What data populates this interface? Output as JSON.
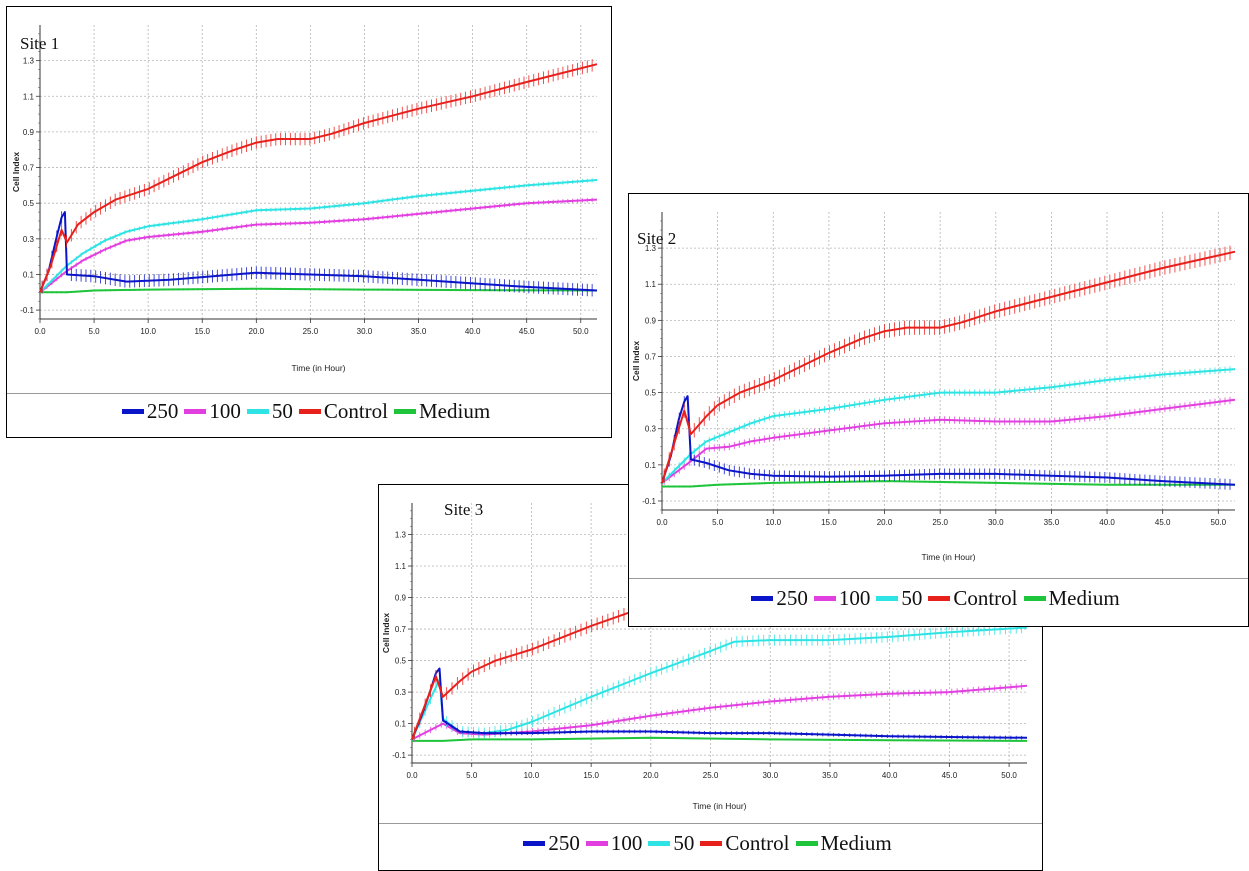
{
  "chart_data": [
    {
      "type": "line",
      "title": "Site 1",
      "xlabel": "Time (in Hour)",
      "ylabel": "Cell Index",
      "xlim": [
        0,
        51.5
      ],
      "ylim": [
        -0.15,
        1.5
      ],
      "xticks": [
        "0.0",
        "5.0",
        "10.0",
        "15.0",
        "20.0",
        "25.0",
        "30.0",
        "35.0",
        "40.0",
        "45.0",
        "50.0"
      ],
      "yticks": [
        "-0.1",
        "0.1",
        "0.3",
        "0.5",
        "0.7",
        "0.9",
        "1.1",
        "1.3"
      ],
      "grid": true,
      "legend": "bottom",
      "series": [
        {
          "name": "250",
          "color": "#0a14c8",
          "error": 0.035,
          "x": [
            0,
            0.8,
            1.5,
            2.0,
            2.3,
            2.5,
            5,
            8,
            12,
            16,
            20,
            25,
            30,
            35,
            40,
            45,
            51.5
          ],
          "y": [
            0,
            0.12,
            0.3,
            0.42,
            0.45,
            0.1,
            0.09,
            0.06,
            0.07,
            0.09,
            0.11,
            0.1,
            0.09,
            0.07,
            0.05,
            0.03,
            0.01
          ]
        },
        {
          "name": "100",
          "color": "#e23fe0",
          "error": 0.012,
          "x": [
            0,
            2.5,
            4,
            6,
            8,
            10,
            15,
            20,
            25,
            30,
            35,
            40,
            45,
            51.5
          ],
          "y": [
            0,
            0.12,
            0.18,
            0.24,
            0.29,
            0.31,
            0.34,
            0.38,
            0.39,
            0.41,
            0.44,
            0.47,
            0.5,
            0.52
          ]
        },
        {
          "name": "50",
          "color": "#2ee3e3",
          "error": 0.012,
          "x": [
            0,
            2.5,
            4,
            6,
            8,
            10,
            15,
            20,
            25,
            30,
            35,
            40,
            45,
            51.5
          ],
          "y": [
            0,
            0.15,
            0.22,
            0.29,
            0.34,
            0.37,
            0.41,
            0.46,
            0.47,
            0.5,
            0.54,
            0.57,
            0.6,
            0.63
          ]
        },
        {
          "name": "Control",
          "color": "#e8201c",
          "error": 0.035,
          "x": [
            0,
            1.0,
            2.0,
            2.5,
            3.5,
            5,
            7,
            10,
            12,
            15,
            18,
            20,
            22,
            25,
            27,
            30,
            35,
            40,
            45,
            51.5
          ],
          "y": [
            0,
            0.15,
            0.35,
            0.28,
            0.38,
            0.45,
            0.52,
            0.58,
            0.64,
            0.73,
            0.8,
            0.84,
            0.86,
            0.86,
            0.89,
            0.95,
            1.03,
            1.1,
            1.18,
            1.28
          ]
        },
        {
          "name": "Medium",
          "color": "#1ec43a",
          "error": 0.006,
          "x": [
            0,
            2.5,
            5,
            10,
            20,
            30,
            40,
            51.5
          ],
          "y": [
            0,
            0.0,
            0.01,
            0.015,
            0.02,
            0.015,
            0.012,
            0.01
          ]
        }
      ]
    },
    {
      "type": "line",
      "title": "Site 2",
      "xlabel": "Time (in Hour)",
      "ylabel": "Cell Index",
      "xlim": [
        0,
        51.5
      ],
      "ylim": [
        -0.15,
        1.5
      ],
      "xticks": [
        "0.0",
        "5.0",
        "10.0",
        "15.0",
        "20.0",
        "25.0",
        "30.0",
        "35.0",
        "40.0",
        "45.0",
        "50.0"
      ],
      "yticks": [
        "-0.1",
        "0.1",
        "0.3",
        "0.5",
        "0.7",
        "0.9",
        "1.1",
        "1.3"
      ],
      "grid": true,
      "legend": "bottom",
      "series": [
        {
          "name": "250",
          "color": "#0a14c8",
          "error": 0.03,
          "x": [
            0,
            0.8,
            1.5,
            2.0,
            2.3,
            2.6,
            4,
            6,
            8,
            10,
            15,
            20,
            25,
            30,
            35,
            40,
            45,
            51.5
          ],
          "y": [
            0,
            0.15,
            0.35,
            0.45,
            0.48,
            0.13,
            0.11,
            0.07,
            0.05,
            0.04,
            0.035,
            0.04,
            0.05,
            0.05,
            0.04,
            0.03,
            0.01,
            -0.01
          ]
        },
        {
          "name": "100",
          "color": "#e23fe0",
          "error": 0.02,
          "x": [
            0,
            2.6,
            4,
            6,
            8,
            10,
            15,
            20,
            25,
            30,
            35,
            40,
            45,
            51.5
          ],
          "y": [
            0,
            0.12,
            0.19,
            0.2,
            0.23,
            0.25,
            0.29,
            0.33,
            0.35,
            0.34,
            0.34,
            0.37,
            0.41,
            0.46
          ]
        },
        {
          "name": "50",
          "color": "#2ee3e3",
          "error": 0.018,
          "x": [
            0,
            2.6,
            4,
            6,
            8,
            10,
            15,
            20,
            25,
            30,
            35,
            40,
            45,
            51.5
          ],
          "y": [
            0,
            0.16,
            0.23,
            0.28,
            0.33,
            0.37,
            0.41,
            0.46,
            0.5,
            0.5,
            0.53,
            0.57,
            0.6,
            0.63
          ]
        },
        {
          "name": "Control",
          "color": "#e8201c",
          "error": 0.04,
          "x": [
            0,
            1.0,
            2.0,
            2.6,
            4,
            5,
            7,
            10,
            12,
            15,
            18,
            20,
            22,
            25,
            27,
            30,
            35,
            40,
            45,
            51.5
          ],
          "y": [
            0,
            0.2,
            0.4,
            0.27,
            0.37,
            0.43,
            0.5,
            0.57,
            0.63,
            0.72,
            0.8,
            0.84,
            0.86,
            0.86,
            0.89,
            0.95,
            1.03,
            1.11,
            1.19,
            1.28
          ]
        },
        {
          "name": "Medium",
          "color": "#1ec43a",
          "error": 0.006,
          "x": [
            0,
            2.6,
            5,
            10,
            20,
            30,
            40,
            51.5
          ],
          "y": [
            -0.02,
            -0.02,
            -0.01,
            0.0,
            0.01,
            0.0,
            -0.01,
            -0.01
          ]
        }
      ]
    },
    {
      "type": "line",
      "title": "Site 3",
      "xlabel": "Time (in Hour)",
      "ylabel": "Cell Index",
      "xlim": [
        0,
        51.5
      ],
      "ylim": [
        -0.15,
        1.5
      ],
      "xticks": [
        "0.0",
        "5.0",
        "10.0",
        "15.0",
        "20.0",
        "25.0",
        "30.0",
        "35.0",
        "40.0",
        "45.0",
        "50.0"
      ],
      "yticks": [
        "-0.1",
        "0.1",
        "0.3",
        "0.5",
        "0.7",
        "0.9",
        "1.1",
        "1.3"
      ],
      "grid": true,
      "legend": "bottom",
      "series": [
        {
          "name": "250",
          "color": "#0a14c8",
          "error": 0.012,
          "x": [
            0,
            0.8,
            1.5,
            2.0,
            2.3,
            2.6,
            4,
            6,
            10,
            15,
            20,
            25,
            30,
            35,
            40,
            45,
            51.5
          ],
          "y": [
            0,
            0.15,
            0.3,
            0.42,
            0.45,
            0.12,
            0.05,
            0.04,
            0.04,
            0.05,
            0.05,
            0.04,
            0.04,
            0.03,
            0.02,
            0.015,
            0.01
          ]
        },
        {
          "name": "100",
          "color": "#e23fe0",
          "error": 0.02,
          "x": [
            0,
            2.6,
            4,
            6,
            10,
            15,
            20,
            25,
            30,
            35,
            40,
            45,
            51.5
          ],
          "y": [
            0,
            0.1,
            0.04,
            0.03,
            0.05,
            0.09,
            0.15,
            0.2,
            0.24,
            0.27,
            0.29,
            0.3,
            0.34
          ]
        },
        {
          "name": "50",
          "color": "#2ee3e3",
          "error": 0.035,
          "x": [
            0,
            1.5,
            2.3,
            2.6,
            4,
            6,
            8,
            10,
            15,
            20,
            25,
            27,
            30,
            35,
            40,
            45,
            51.5
          ],
          "y": [
            0,
            0.25,
            0.38,
            0.13,
            0.05,
            0.04,
            0.06,
            0.11,
            0.27,
            0.42,
            0.56,
            0.62,
            0.63,
            0.63,
            0.65,
            0.68,
            0.71
          ]
        },
        {
          "name": "Control",
          "color": "#e8201c",
          "error": 0.04,
          "x": [
            0,
            1.0,
            2.0,
            2.6,
            4,
            5,
            7,
            10,
            12,
            15,
            18,
            20,
            22,
            25,
            27,
            30,
            35,
            40,
            45,
            51.5
          ],
          "y": [
            0,
            0.2,
            0.4,
            0.27,
            0.37,
            0.43,
            0.5,
            0.57,
            0.63,
            0.72,
            0.8,
            0.84,
            0.86,
            0.86,
            0.89,
            0.95,
            1.03,
            1.11,
            1.19,
            1.28
          ]
        },
        {
          "name": "Medium",
          "color": "#1ec43a",
          "error": 0.005,
          "x": [
            0,
            2.6,
            5,
            10,
            20,
            30,
            40,
            51.5
          ],
          "y": [
            -0.01,
            -0.01,
            0.0,
            0.0,
            0.01,
            0.0,
            -0.005,
            -0.01
          ]
        }
      ]
    }
  ]
}
